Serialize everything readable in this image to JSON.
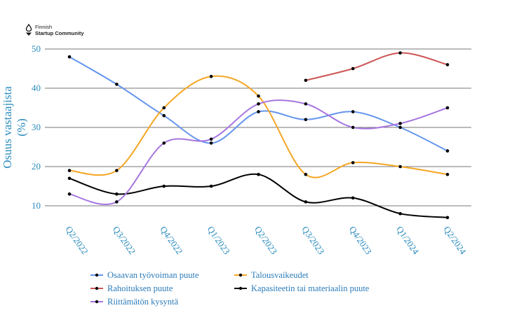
{
  "logo": {
    "line1": "Finnish",
    "line2": "Startup Community"
  },
  "chart_data": {
    "type": "line",
    "title": "",
    "xlabel": "",
    "ylabel_line1": "Osuus vastaajista",
    "ylabel_line2": "(%)",
    "ylim": [
      5,
      51
    ],
    "yticks": [
      10,
      20,
      30,
      40,
      50
    ],
    "grid": true,
    "legend_position": "bottom",
    "categories": [
      "Q2/2022",
      "Q3/2022",
      "Q4/2022",
      "Q1/2023",
      "Q2/2023",
      "Q3/2023",
      "Q4/2023",
      "Q1/2024",
      "Q2/2024"
    ],
    "series": [
      {
        "name": "Osaavan työvoiman puute",
        "color": "#6495ed",
        "values": [
          48,
          41,
          33,
          26,
          34,
          32,
          34,
          30,
          24
        ]
      },
      {
        "name": "Talousvaikeudet",
        "color": "#f5a623",
        "values": [
          19,
          19,
          35,
          43,
          38,
          18,
          21,
          20,
          18
        ]
      },
      {
        "name": "Rahoituksen puute",
        "color": "#cd5555",
        "values": [
          null,
          null,
          null,
          null,
          null,
          42,
          45,
          49,
          46
        ]
      },
      {
        "name": "Kapasiteetin tai materiaalin puute",
        "color": "#000000",
        "values": [
          17,
          13,
          15,
          15,
          18,
          11,
          12,
          8,
          7
        ]
      },
      {
        "name": "Riittämätön kysyntä",
        "color": "#a675e0",
        "values": [
          13,
          11,
          26,
          27,
          36,
          36,
          30,
          31,
          35
        ]
      }
    ]
  }
}
